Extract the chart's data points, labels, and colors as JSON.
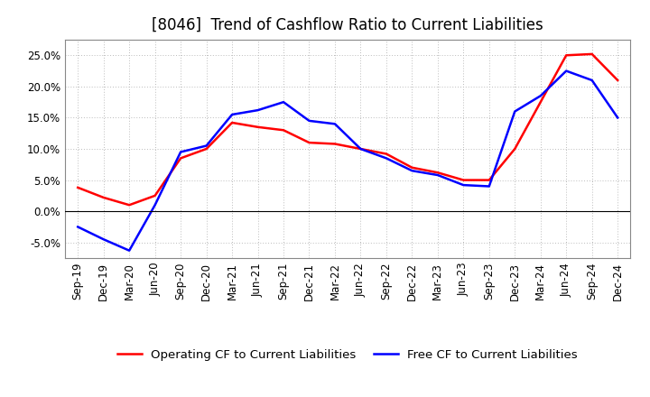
{
  "title": "[8046]  Trend of Cashflow Ratio to Current Liabilities",
  "x_labels": [
    "Sep-19",
    "Dec-19",
    "Mar-20",
    "Jun-20",
    "Sep-20",
    "Dec-20",
    "Mar-21",
    "Jun-21",
    "Sep-21",
    "Dec-21",
    "Mar-22",
    "Jun-22",
    "Sep-22",
    "Dec-22",
    "Mar-23",
    "Jun-23",
    "Sep-23",
    "Dec-23",
    "Mar-24",
    "Jun-24",
    "Sep-24",
    "Dec-24"
  ],
  "operating_cf": [
    3.8,
    2.2,
    1.0,
    2.5,
    8.5,
    10.0,
    14.2,
    13.5,
    13.0,
    11.0,
    10.8,
    10.0,
    9.2,
    7.0,
    6.2,
    5.0,
    5.0,
    10.0,
    17.5,
    25.0,
    25.2,
    21.0
  ],
  "free_cf": [
    -2.5,
    -4.5,
    -6.3,
    1.0,
    9.5,
    10.5,
    15.5,
    16.2,
    17.5,
    14.5,
    14.0,
    10.0,
    8.5,
    6.5,
    5.8,
    4.2,
    4.0,
    16.0,
    18.5,
    22.5,
    21.0,
    15.0
  ],
  "operating_color": "#ff0000",
  "free_color": "#0000ff",
  "ylim": [
    -7.5,
    27.5
  ],
  "yticks": [
    -5.0,
    0.0,
    5.0,
    10.0,
    15.0,
    20.0,
    25.0
  ],
  "legend_operating": "Operating CF to Current Liabilities",
  "legend_free": "Free CF to Current Liabilities",
  "background_color": "#ffffff",
  "grid_color": "#aaaaaa",
  "title_fontsize": 12,
  "axis_fontsize": 8.5,
  "legend_fontsize": 9.5
}
